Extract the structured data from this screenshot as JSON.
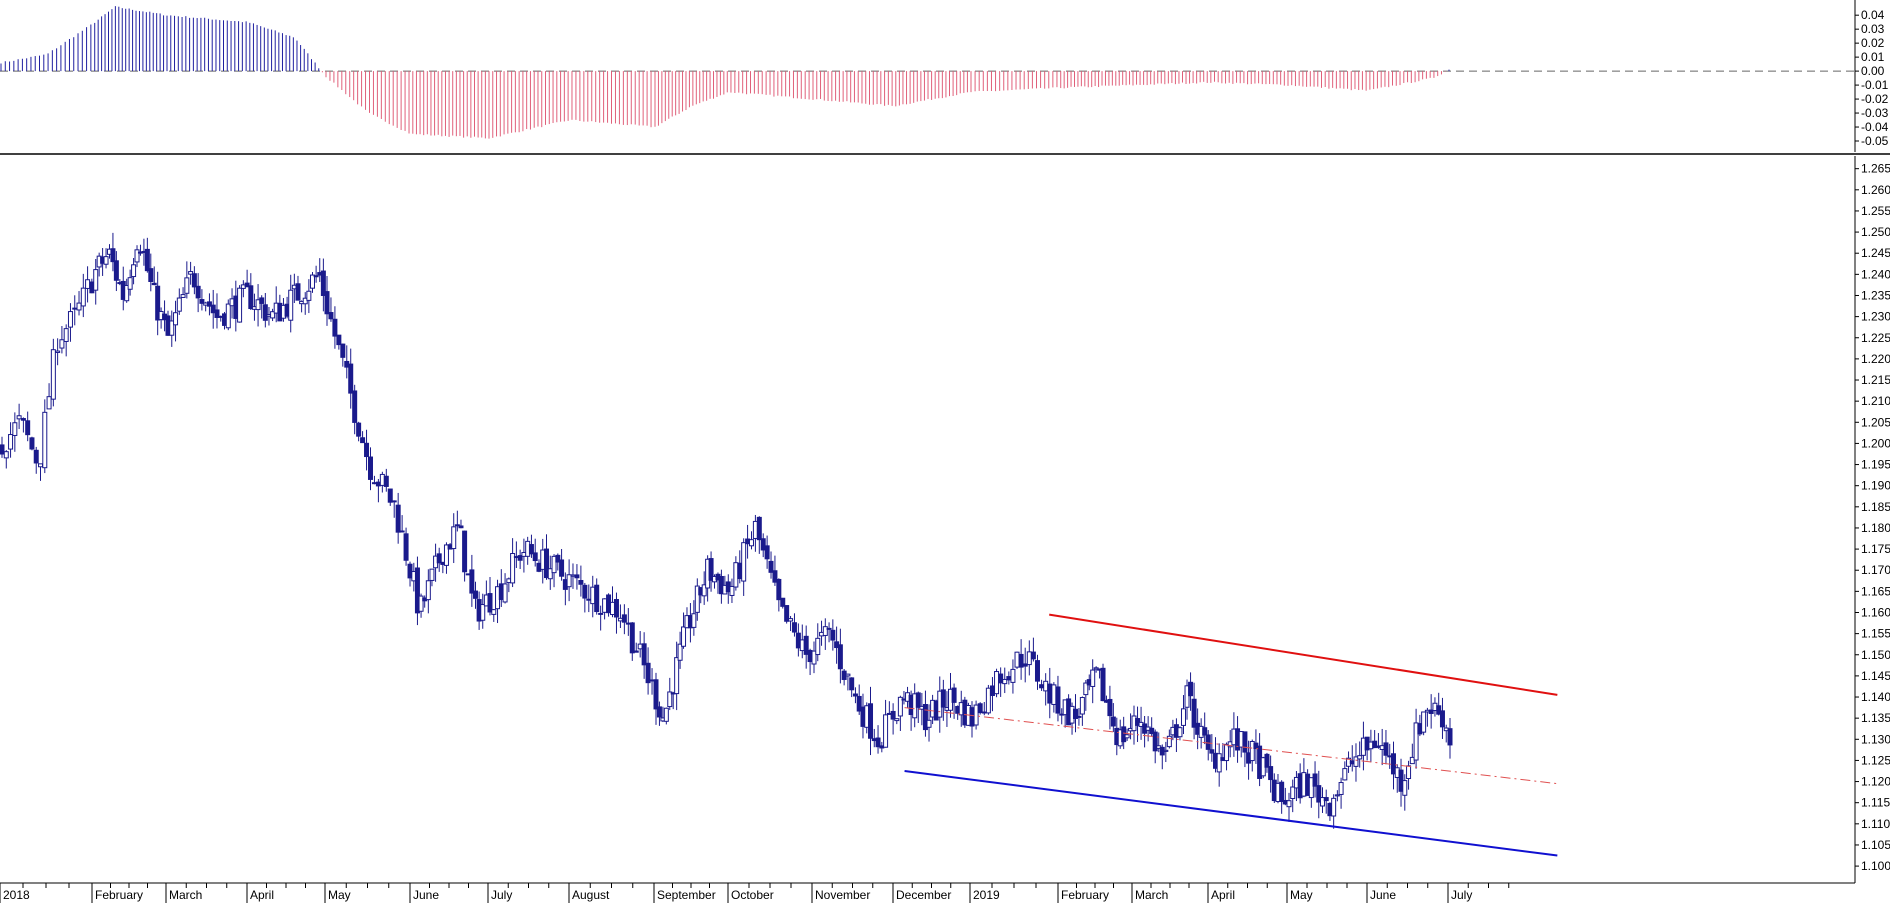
{
  "chart_data": [
    {
      "type": "bar",
      "panel": "oscillator",
      "ylim": [
        -0.055,
        0.048
      ],
      "y_ticks": [
        "0.04",
        "0.03",
        "0.02",
        "0.01",
        "0.00",
        "-0.01",
        "-0.02",
        "-0.03",
        "-0.04",
        "-0.05"
      ],
      "y_tick_values": [
        0.04,
        0.03,
        0.02,
        0.01,
        0.0,
        -0.01,
        -0.02,
        -0.03,
        -0.04,
        -0.05
      ],
      "colors": {
        "positive": "#1f1fa0",
        "negative": "#e0607a",
        "zero_line": "#666666"
      },
      "profile_months_values": [
        [
          0.0,
          0.006
        ],
        [
          0.5,
          0.012
        ],
        [
          1.0,
          0.034
        ],
        [
          1.3,
          0.046
        ],
        [
          2.0,
          0.04
        ],
        [
          3.0,
          0.035
        ],
        [
          3.6,
          0.024
        ],
        [
          4.0,
          -0.004
        ],
        [
          4.5,
          -0.03
        ],
        [
          5.0,
          -0.045
        ],
        [
          6.0,
          -0.048
        ],
        [
          7.0,
          -0.035
        ],
        [
          8.0,
          -0.04
        ],
        [
          8.5,
          -0.025
        ],
        [
          9.0,
          -0.015
        ],
        [
          10.0,
          -0.02
        ],
        [
          11.0,
          -0.025
        ],
        [
          12.0,
          -0.015
        ],
        [
          13.0,
          -0.012
        ],
        [
          14.0,
          -0.01
        ],
        [
          15.0,
          -0.008
        ],
        [
          16.0,
          -0.01
        ],
        [
          17.0,
          -0.014
        ],
        [
          17.8,
          -0.005
        ],
        [
          18.0,
          0.001
        ]
      ]
    },
    {
      "type": "candlestick",
      "panel": "price",
      "ylim": [
        1.096,
        1.268
      ],
      "y_ticks": [
        "1.265",
        "1.260",
        "1.255",
        "1.250",
        "1.245",
        "1.240",
        "1.235",
        "1.230",
        "1.225",
        "1.220",
        "1.215",
        "1.210",
        "1.205",
        "1.200",
        "1.195",
        "1.190",
        "1.185",
        "1.180",
        "1.175",
        "1.170",
        "1.165",
        "1.160",
        "1.155",
        "1.150",
        "1.145",
        "1.140",
        "1.135",
        "1.130",
        "1.125",
        "1.120",
        "1.115",
        "1.110",
        "1.105",
        "1.100"
      ],
      "y_tick_values": [
        1.265,
        1.26,
        1.255,
        1.25,
        1.245,
        1.24,
        1.235,
        1.23,
        1.225,
        1.22,
        1.215,
        1.21,
        1.205,
        1.2,
        1.195,
        1.19,
        1.185,
        1.18,
        1.175,
        1.17,
        1.165,
        1.16,
        1.155,
        1.15,
        1.145,
        1.14,
        1.135,
        1.13,
        1.125,
        1.12,
        1.115,
        1.11,
        1.105,
        1.1
      ],
      "color": "#1a1a8c",
      "close_profile_months": [
        [
          0.0,
          1.2
        ],
        [
          0.2,
          1.205
        ],
        [
          0.4,
          1.195
        ],
        [
          0.6,
          1.225
        ],
        [
          0.8,
          1.23
        ],
        [
          1.0,
          1.24
        ],
        [
          1.2,
          1.245
        ],
        [
          1.4,
          1.235
        ],
        [
          1.6,
          1.25
        ],
        [
          1.8,
          1.235
        ],
        [
          2.0,
          1.225
        ],
        [
          2.3,
          1.24
        ],
        [
          2.6,
          1.23
        ],
        [
          3.0,
          1.235
        ],
        [
          3.3,
          1.23
        ],
        [
          3.6,
          1.235
        ],
        [
          3.9,
          1.24
        ],
        [
          4.1,
          1.225
        ],
        [
          4.3,
          1.21
        ],
        [
          4.5,
          1.195
        ],
        [
          4.8,
          1.185
        ],
        [
          5.1,
          1.16
        ],
        [
          5.4,
          1.175
        ],
        [
          5.6,
          1.18
        ],
        [
          5.8,
          1.16
        ],
        [
          6.1,
          1.165
        ],
        [
          6.4,
          1.175
        ],
        [
          6.8,
          1.17
        ],
        [
          7.2,
          1.165
        ],
        [
          7.6,
          1.16
        ],
        [
          7.9,
          1.145
        ],
        [
          8.1,
          1.135
        ],
        [
          8.4,
          1.155
        ],
        [
          8.7,
          1.17
        ],
        [
          9.0,
          1.165
        ],
        [
          9.3,
          1.18
        ],
        [
          9.6,
          1.16
        ],
        [
          9.9,
          1.15
        ],
        [
          10.2,
          1.155
        ],
        [
          10.5,
          1.14
        ],
        [
          10.8,
          1.13
        ],
        [
          11.1,
          1.14
        ],
        [
          11.4,
          1.135
        ],
        [
          11.7,
          1.14
        ],
        [
          12.0,
          1.135
        ],
        [
          12.3,
          1.145
        ],
        [
          12.6,
          1.15
        ],
        [
          12.9,
          1.14
        ],
        [
          13.2,
          1.135
        ],
        [
          13.5,
          1.145
        ],
        [
          13.8,
          1.13
        ],
        [
          14.1,
          1.135
        ],
        [
          14.4,
          1.125
        ],
        [
          14.7,
          1.14
        ],
        [
          15.0,
          1.125
        ],
        [
          15.3,
          1.13
        ],
        [
          15.6,
          1.125
        ],
        [
          15.9,
          1.115
        ],
        [
          16.2,
          1.12
        ],
        [
          16.5,
          1.115
        ],
        [
          16.8,
          1.125
        ],
        [
          17.1,
          1.13
        ],
        [
          17.4,
          1.12
        ],
        [
          17.7,
          1.138
        ],
        [
          17.9,
          1.136
        ],
        [
          18.0,
          1.13
        ]
      ],
      "trendlines": [
        {
          "name": "resistance",
          "color": "#e01010",
          "from": [
            12.9,
            1.1595
          ],
          "to": [
            19.35,
            1.1405
          ],
          "style": "solid"
        },
        {
          "name": "support",
          "color": "#1010d0",
          "from": [
            11.15,
            1.1225
          ],
          "to": [
            19.35,
            1.1025
          ],
          "style": "solid"
        },
        {
          "name": "midline",
          "color": "#e05050",
          "from": [
            11.15,
            1.1375
          ],
          "to": [
            19.35,
            1.1195
          ],
          "style": "dash-dot"
        }
      ]
    }
  ],
  "x_axis": {
    "labels": [
      "2018",
      "February",
      "March",
      "April",
      "May",
      "June",
      "July",
      "August",
      "September",
      "October",
      "November",
      "December",
      "2019",
      "February",
      "March",
      "April",
      "May",
      "June",
      "July"
    ],
    "month_index": [
      0,
      1,
      2,
      3,
      4,
      5,
      6,
      7,
      8,
      9,
      10,
      11,
      12,
      13,
      14,
      15,
      16,
      17,
      18
    ]
  }
}
